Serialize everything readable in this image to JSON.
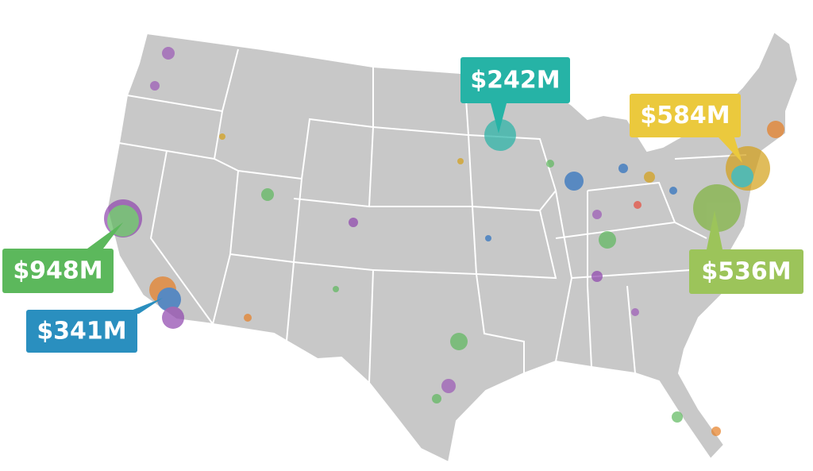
{
  "callouts": [
    {
      "label": "$948M",
      "color": "#5cb85c"
    },
    {
      "label": "$341M",
      "color": "#2a8fbf"
    },
    {
      "label": "$242M",
      "color": "#26b3a6"
    },
    {
      "label": "$584M",
      "color": "#ebc93d"
    },
    {
      "label": "$536M",
      "color": "#9cc45a"
    }
  ]
}
